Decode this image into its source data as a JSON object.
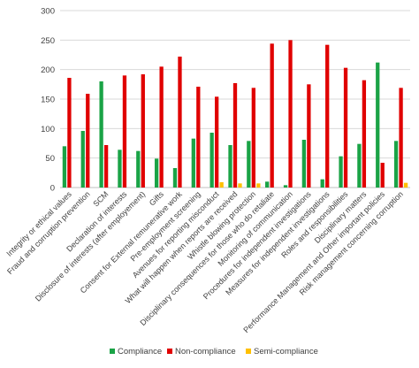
{
  "chart_data": {
    "type": "bar",
    "title": "",
    "xlabel": "",
    "ylabel": "",
    "ylim": [
      0,
      300
    ],
    "yticks": [
      0,
      50,
      100,
      150,
      200,
      250,
      300
    ],
    "grid": true,
    "legend_position": "bottom",
    "categories": [
      "Integrity or ethical values",
      "Fraud and corruption prevention",
      "SCM",
      "Declaration of interests",
      "Disclosure of interests (after employement)",
      "Gifts",
      "Consent for External remunerative work",
      "Pre-employment screening",
      "Avenues for reporting misconduct",
      "What will happen when reports are received",
      "Whistle blowing protection",
      "Disciplinary consequences for those who do retaliate",
      "Monitoring of communication",
      "Procedures for independent investigations",
      "Measures for independent investigations",
      "Roles and responsibilities",
      "Disciplinary matters",
      "Performance Management and Other important policies",
      "Risk management concerning corruption"
    ],
    "series": [
      {
        "name": "Compliance",
        "color": "#1aa346",
        "values": [
          70,
          96,
          180,
          64,
          62,
          49,
          33,
          83,
          93,
          72,
          79,
          10,
          4,
          81,
          14,
          53,
          74,
          212,
          79
        ]
      },
      {
        "name": "Non-compliance",
        "color": "#e00000",
        "values": [
          186,
          159,
          72,
          190,
          192,
          205,
          222,
          171,
          154,
          177,
          169,
          244,
          250,
          175,
          242,
          203,
          182,
          42,
          169
        ]
      },
      {
        "name": "Semi-compliance",
        "color": "#ffc000",
        "values": [
          0,
          0,
          0,
          0,
          0,
          0,
          0,
          0,
          9,
          7,
          7,
          0,
          0,
          0,
          0,
          0,
          0,
          0,
          8
        ]
      }
    ]
  }
}
